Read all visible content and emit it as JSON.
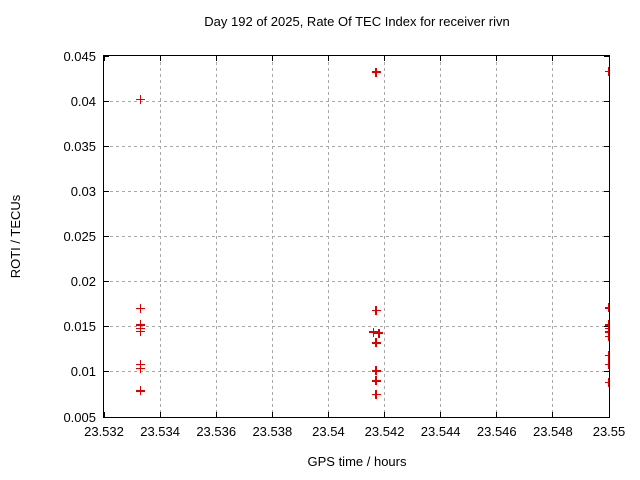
{
  "colors": {
    "marker": "#e00000",
    "grid": "#a8a8a8",
    "axis": "#000000",
    "background": "#ffffff",
    "text": "#000000"
  },
  "chart_data": {
    "type": "scatter",
    "title": "Day 192 of 2025, Rate Of TEC Index for receiver rivn",
    "xlabel": "GPS time / hours",
    "ylabel": "ROTI / TECUs",
    "xlim": [
      23.532,
      23.55
    ],
    "ylim": [
      0.005,
      0.045
    ],
    "grid": "dashed",
    "legend": "none",
    "marker": {
      "shape": "plus",
      "color": "#e00000"
    },
    "x_ticks": [
      {
        "v": 23.532,
        "label": "23.532"
      },
      {
        "v": 23.534,
        "label": "23.534"
      },
      {
        "v": 23.536,
        "label": "23.536"
      },
      {
        "v": 23.538,
        "label": "23.538"
      },
      {
        "v": 23.54,
        "label": "23.54"
      },
      {
        "v": 23.542,
        "label": "23.542"
      },
      {
        "v": 23.544,
        "label": "23.544"
      },
      {
        "v": 23.546,
        "label": "23.546"
      },
      {
        "v": 23.548,
        "label": "23.548"
      },
      {
        "v": 23.55,
        "label": "23.55"
      }
    ],
    "y_ticks": [
      {
        "v": 0.005,
        "label": "0.005"
      },
      {
        "v": 0.01,
        "label": "0.01"
      },
      {
        "v": 0.015,
        "label": "0.015"
      },
      {
        "v": 0.02,
        "label": "0.02"
      },
      {
        "v": 0.025,
        "label": "0.025"
      },
      {
        "v": 0.03,
        "label": "0.03"
      },
      {
        "v": 0.035,
        "label": "0.035"
      },
      {
        "v": 0.04,
        "label": "0.04"
      },
      {
        "v": 0.045,
        "label": "0.045"
      }
    ],
    "points": [
      [
        23.5333,
        0.0402
      ],
      [
        23.5333,
        0.017
      ],
      [
        23.5333,
        0.0152
      ],
      [
        23.5333,
        0.0148
      ],
      [
        23.5333,
        0.0145
      ],
      [
        23.5333,
        0.0108
      ],
      [
        23.5333,
        0.0104
      ],
      [
        23.5333,
        0.0079
      ],
      [
        23.5417,
        0.0432
      ],
      [
        23.5417,
        0.0168
      ],
      [
        23.5416,
        0.0144
      ],
      [
        23.5418,
        0.0143
      ],
      [
        23.5417,
        0.0132
      ],
      [
        23.5417,
        0.0101
      ],
      [
        23.5417,
        0.009
      ],
      [
        23.5417,
        0.0075
      ],
      [
        23.55,
        0.0433
      ],
      [
        23.55,
        0.0171
      ],
      [
        23.55,
        0.0152
      ],
      [
        23.55,
        0.0148
      ],
      [
        23.55,
        0.0144
      ],
      [
        23.55,
        0.0139
      ],
      [
        23.55,
        0.0118
      ],
      [
        23.55,
        0.0108
      ],
      [
        23.55,
        0.0088
      ]
    ]
  }
}
